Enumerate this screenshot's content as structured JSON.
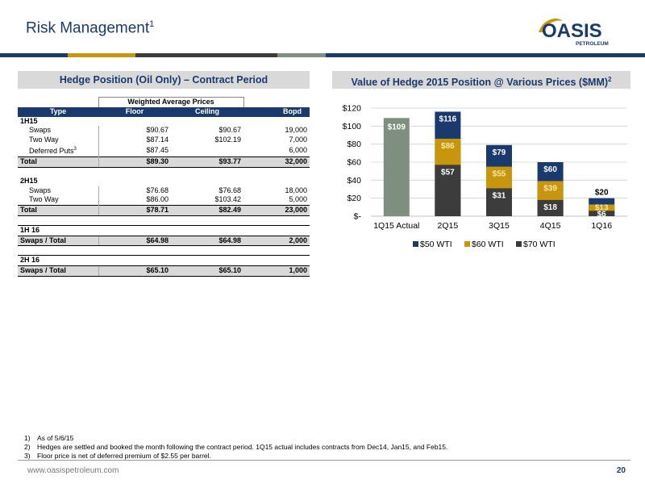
{
  "page": {
    "title": "Risk Management",
    "title_sup": "1",
    "logo_main": "OASIS",
    "logo_sub": "PETROLEUM",
    "footer_url": "www.oasispetroleum.com",
    "page_number": "20"
  },
  "colors": {
    "navy": "#1a3a6e",
    "gold": "#c8960c",
    "dark_gray": "#3c3c3c",
    "sage": "#7f8f7f"
  },
  "hedge_table": {
    "header": "Hedge Position (Oil Only) – Contract Period",
    "group_header": "Weighted Average Prices",
    "columns": [
      "Type",
      "Floor",
      "Ceiling",
      "Bopd"
    ],
    "sections": [
      {
        "name": "1H15",
        "rows": [
          {
            "type": "Swaps",
            "floor": "$90.67",
            "ceiling": "$90.67",
            "bopd": "19,000"
          },
          {
            "type": "Two Way",
            "floor": "$87.14",
            "ceiling": "$102.19",
            "bopd": "7,000"
          },
          {
            "type": "Deferred Puts",
            "type_sup": "3",
            "floor": "$87.45",
            "ceiling": "",
            "bopd": "6,000"
          }
        ],
        "total": {
          "type": "Total",
          "floor": "$89.30",
          "ceiling": "$93.77",
          "bopd": "32,000"
        }
      },
      {
        "name": "2H15",
        "rows": [
          {
            "type": "Swaps",
            "floor": "$76.68",
            "ceiling": "$76.68",
            "bopd": "18,000"
          },
          {
            "type": "Two Way",
            "floor": "$86.00",
            "ceiling": "$103.42",
            "bopd": "5,000"
          }
        ],
        "total": {
          "type": "Total",
          "floor": "$78.71",
          "ceiling": "$82.49",
          "bopd": "23,000"
        }
      },
      {
        "name": "1H 16",
        "rows": [],
        "total": {
          "type": "Swaps / Total",
          "floor": "$64.98",
          "ceiling": "$64.98",
          "bopd": "2,000"
        }
      },
      {
        "name": "2H 16",
        "rows": [],
        "total": {
          "type": "Swaps / Total",
          "floor": "$65.10",
          "ceiling": "$65.10",
          "bopd": "1,000"
        }
      }
    ]
  },
  "chart_data": {
    "type": "bar",
    "title": "Value of Hedge 2015 Position @ Various Prices ($MM)",
    "title_sup": "2",
    "categories": [
      "1Q15 Actual",
      "2Q15",
      "3Q15",
      "4Q15",
      "1Q16"
    ],
    "ylim": [
      0,
      120
    ],
    "yticks": [
      0,
      20,
      40,
      60,
      80,
      100,
      120
    ],
    "ytick_labels": [
      "$-",
      "$20",
      "$40",
      "$60",
      "$80",
      "$100",
      "$120"
    ],
    "grid": true,
    "legend_position": "bottom",
    "actual": {
      "category": "1Q15 Actual",
      "value": 109,
      "label": "$109"
    },
    "series": [
      {
        "name": "$50 WTI",
        "values": [
          null,
          116,
          79,
          60,
          20
        ],
        "labels": [
          "",
          "$116",
          "$79",
          "$60",
          "$20"
        ]
      },
      {
        "name": "$60 WTI",
        "values": [
          null,
          86,
          55,
          39,
          13
        ],
        "labels": [
          "",
          "$86",
          "$55",
          "$39",
          "$13"
        ]
      },
      {
        "name": "$70 WTI",
        "values": [
          null,
          57,
          31,
          18,
          6
        ],
        "labels": [
          "",
          "$57",
          "$31",
          "$18",
          "$6"
        ]
      }
    ]
  },
  "footnotes": [
    {
      "n": "1)",
      "text": "As of 5/6/15"
    },
    {
      "n": "2)",
      "text": "Hedges are settled and booked the month following the contract period.  1Q15 actual includes contracts from Dec14, Jan15, and Feb15."
    },
    {
      "n": "3)",
      "text": "Floor price is net of deferred premium of $2.55 per barrel."
    }
  ]
}
